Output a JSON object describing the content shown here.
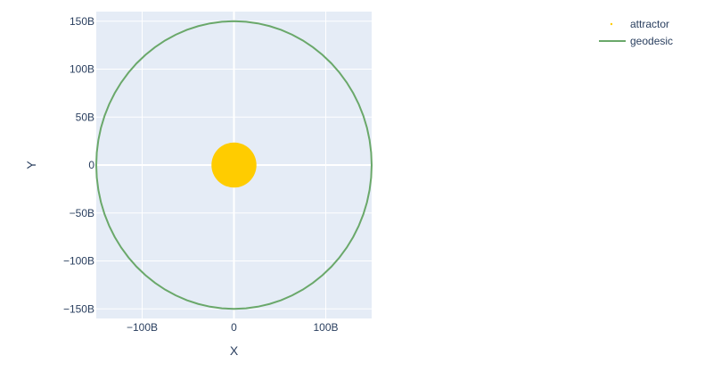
{
  "chart_data": {
    "type": "scatter",
    "title": "",
    "xlabel": "X",
    "ylabel": "Y",
    "xlim": [
      -150000000000,
      150000000000
    ],
    "ylim": [
      -160000000000,
      160000000000
    ],
    "x_ticks": [
      {
        "value": -100000000000,
        "label": "−100B"
      },
      {
        "value": 0,
        "label": "0"
      },
      {
        "value": 100000000000,
        "label": "100B"
      }
    ],
    "y_ticks": [
      {
        "value": 150000000000,
        "label": "150B"
      },
      {
        "value": 100000000000,
        "label": "100B"
      },
      {
        "value": 50000000000,
        "label": "50B"
      },
      {
        "value": 0,
        "label": "0"
      },
      {
        "value": -50000000000,
        "label": "−50B"
      },
      {
        "value": -100000000000,
        "label": "−100B"
      },
      {
        "value": -150000000000,
        "label": "−150B"
      }
    ],
    "grid": true,
    "legend_position": "top-right",
    "series": [
      {
        "name": "attractor",
        "type": "marker",
        "color": "#ffcc00",
        "points": [
          {
            "x": 0,
            "y": 0
          }
        ],
        "marker_radius_units": 24500000000
      },
      {
        "name": "geodesic",
        "type": "line",
        "color": "#6aa86a",
        "shape": "circle",
        "center": {
          "x": 0,
          "y": 0
        },
        "radius": 150000000000
      }
    ]
  },
  "colors": {
    "plot_background": "#e5ecf6",
    "grid": "#ffffff",
    "text": "#2a3f5f"
  }
}
